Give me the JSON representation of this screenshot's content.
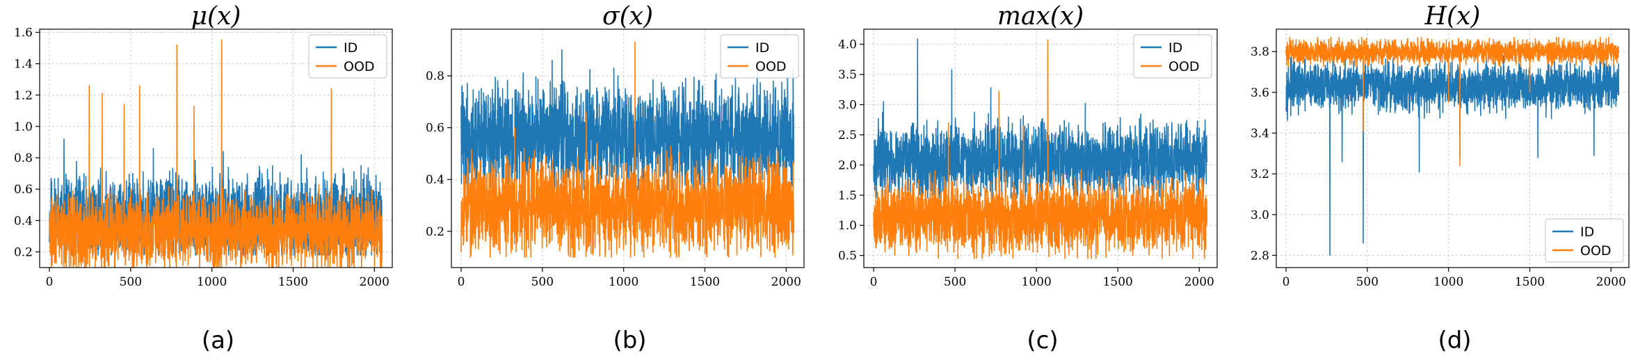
{
  "chart_data": [
    {
      "type": "line",
      "title": "μ(x)",
      "caption": "(a)",
      "xlabel": "",
      "ylabel": "",
      "xlim": [
        -60,
        2110
      ],
      "ylim": [
        0.1,
        1.62
      ],
      "xticks": [
        0,
        500,
        1000,
        1500,
        2000
      ],
      "yticks": [
        0.2,
        0.4,
        0.6,
        0.8,
        1.0,
        1.2,
        1.4,
        1.6
      ],
      "xtick_labels": [
        "0",
        "500",
        "1000",
        "1500",
        "2000"
      ],
      "ytick_labels": [
        "0.2",
        "0.4",
        "0.6",
        "0.8",
        "1.0",
        "1.2",
        "1.4",
        "1.6"
      ],
      "grid": true,
      "legend_position": "top-right",
      "series": [
        {
          "name": "ID",
          "color": "#1f77b4",
          "n_points": 2048,
          "seed": 11,
          "base": 0.42,
          "noise": 0.13,
          "low": 0.18,
          "high": 0.92,
          "spikes": [
            [
              90,
              0.92
            ],
            [
              640,
              0.86
            ],
            [
              1070,
              0.84
            ],
            [
              1550,
              0.82
            ]
          ]
        },
        {
          "name": "OOD",
          "color": "#ff7f0e",
          "n_points": 2048,
          "seed": 29,
          "base": 0.33,
          "noise": 0.12,
          "low": 0.08,
          "high": 0.85,
          "spikes": [
            [
              245,
              1.26
            ],
            [
              325,
              1.21
            ],
            [
              555,
              1.26
            ],
            [
              785,
              1.52
            ],
            [
              1060,
              1.55
            ],
            [
              1735,
              1.24
            ],
            [
              890,
              1.13
            ],
            [
              460,
              1.14
            ]
          ]
        }
      ]
    },
    {
      "type": "line",
      "title": "σ(x)",
      "caption": "(b)",
      "xlabel": "",
      "ylabel": "",
      "xlim": [
        -60,
        2110
      ],
      "ylim": [
        0.06,
        0.98
      ],
      "xticks": [
        0,
        500,
        1000,
        1500,
        2000
      ],
      "yticks": [
        0.2,
        0.4,
        0.6,
        0.8
      ],
      "xtick_labels": [
        "0",
        "500",
        "1000",
        "1500",
        "2000"
      ],
      "ytick_labels": [
        "0.2",
        "0.4",
        "0.6",
        "0.8"
      ],
      "grid": true,
      "legend_position": "top-right",
      "series": [
        {
          "name": "ID",
          "color": "#1f77b4",
          "n_points": 2048,
          "seed": 41,
          "base": 0.56,
          "noise": 0.1,
          "low": 0.36,
          "high": 0.9,
          "spikes": [
            [
              620,
              0.9
            ],
            [
              560,
              0.86
            ],
            [
              940,
              0.83
            ]
          ]
        },
        {
          "name": "OOD",
          "color": "#ff7f0e",
          "n_points": 2048,
          "seed": 53,
          "base": 0.3,
          "noise": 0.09,
          "low": 0.1,
          "high": 0.6,
          "spikes": [
            [
              1070,
              0.93
            ],
            [
              770,
              0.66
            ],
            [
              330,
              0.6
            ]
          ]
        }
      ]
    },
    {
      "type": "line",
      "title": "max(x)",
      "caption": "(c)",
      "xlabel": "",
      "ylabel": "",
      "xlim": [
        -60,
        2110
      ],
      "ylim": [
        0.3,
        4.25
      ],
      "xticks": [
        0,
        500,
        1000,
        1500,
        2000
      ],
      "yticks": [
        0.5,
        1.0,
        1.5,
        2.0,
        2.5,
        3.0,
        3.5,
        4.0
      ],
      "xtick_labels": [
        "0",
        "500",
        "1000",
        "1500",
        "2000"
      ],
      "ytick_labels": [
        "0.5",
        "1.0",
        "1.5",
        "2.0",
        "2.5",
        "3.0",
        "3.5",
        "4.0"
      ],
      "grid": true,
      "legend_position": "top-right",
      "series": [
        {
          "name": "ID",
          "color": "#1f77b4",
          "n_points": 2048,
          "seed": 67,
          "base": 2.1,
          "noise": 0.3,
          "low": 1.45,
          "high": 3.1,
          "spikes": [
            [
              270,
              4.09
            ],
            [
              480,
              3.58
            ],
            [
              720,
              3.28
            ],
            [
              60,
              3.05
            ],
            [
              1300,
              3.02
            ]
          ]
        },
        {
          "name": "OOD",
          "color": "#ff7f0e",
          "n_points": 2048,
          "seed": 79,
          "base": 1.15,
          "noise": 0.3,
          "low": 0.45,
          "high": 2.4,
          "spikes": [
            [
              1070,
              4.07
            ],
            [
              770,
              3.22
            ],
            [
              460,
              2.7
            ],
            [
              920,
              2.65
            ]
          ]
        }
      ]
    },
    {
      "type": "line",
      "title": "H(x)",
      "caption": "(d)",
      "xlabel": "",
      "ylabel": "",
      "xlim": [
        -60,
        2110
      ],
      "ylim": [
        2.74,
        3.91
      ],
      "xticks": [
        0,
        500,
        1000,
        1500,
        2000
      ],
      "yticks": [
        2.8,
        3.0,
        3.2,
        3.4,
        3.6,
        3.8
      ],
      "xtick_labels": [
        "0",
        "500",
        "1000",
        "1500",
        "2000"
      ],
      "ytick_labels": [
        "2.8",
        "3.0",
        "3.2",
        "3.4",
        "3.6",
        "3.8"
      ],
      "grid": true,
      "legend_position": "bottom-right",
      "series": [
        {
          "name": "ID",
          "color": "#1f77b4",
          "n_points": 2048,
          "seed": 97,
          "base": 3.63,
          "noise": 0.06,
          "low": 3.38,
          "high": 3.78,
          "spikes": [
            [
              270,
              2.8
            ],
            [
              475,
              2.86
            ],
            [
              1070,
              3.28
            ],
            [
              1550,
              3.28
            ],
            [
              345,
              3.26
            ],
            [
              1895,
              3.29
            ],
            [
              820,
              3.21
            ]
          ]
        },
        {
          "name": "OOD",
          "color": "#ff7f0e",
          "n_points": 2048,
          "seed": 101,
          "base": 3.8,
          "noise": 0.03,
          "low": 3.66,
          "high": 3.87,
          "spikes": [
            [
              1070,
              3.24
            ],
            [
              475,
              3.41
            ],
            [
              1000,
              3.55
            ],
            [
              1500,
              3.6
            ]
          ]
        }
      ]
    }
  ]
}
